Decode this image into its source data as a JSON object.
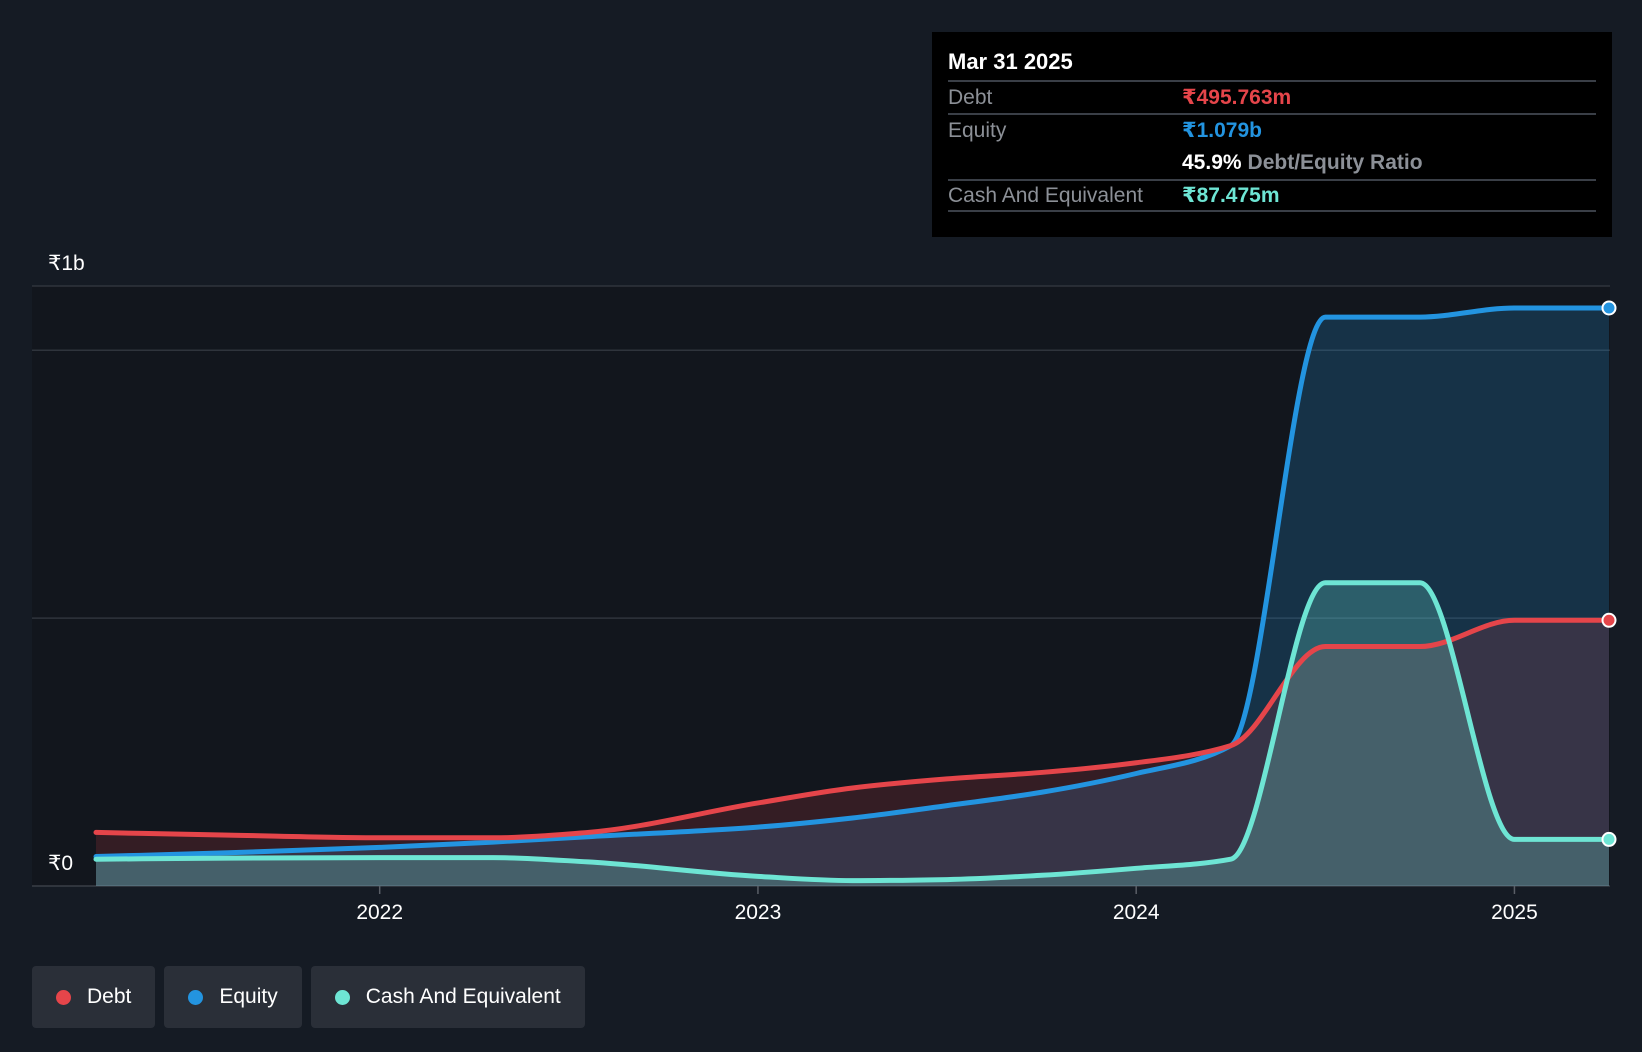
{
  "tooltip": {
    "date": "Mar 31 2025",
    "debt_label": "Debt",
    "debt_value": "₹495.763m",
    "equity_label": "Equity",
    "equity_value": "₹1.079b",
    "ratio_value": "45.9%",
    "ratio_label": "Debt/Equity Ratio",
    "cash_label": "Cash And Equivalent",
    "cash_value": "₹87.475m"
  },
  "legend": {
    "debt": "Debt",
    "equity": "Equity",
    "cash": "Cash And Equivalent"
  },
  "colors": {
    "debt": "#e5454a",
    "equity": "#2394e0",
    "cash": "#6ee5d4",
    "background": "#151b24"
  },
  "chart_data": {
    "type": "area",
    "title": "",
    "xlabel": "",
    "ylabel": "",
    "y_tick_labels": [
      "₹0",
      "₹1b"
    ],
    "x_tick_labels": [
      "2022",
      "2023",
      "2024",
      "2025"
    ],
    "x_ticks": [
      2022,
      2023,
      2024,
      2025
    ],
    "x_range": [
      2021.25,
      2025.25
    ],
    "ylim": [
      0,
      1.12
    ],
    "y_label_values": [
      0,
      1.12
    ],
    "gridlines": [
      0.5,
      1.0,
      1.12
    ],
    "series": [
      {
        "name": "Debt",
        "points": [
          [
            2021.25,
            0.1
          ],
          [
            2021.6,
            0.095
          ],
          [
            2022.0,
            0.09
          ],
          [
            2022.3,
            0.09
          ],
          [
            2022.55,
            0.1
          ],
          [
            2023.0,
            0.155
          ],
          [
            2023.25,
            0.183
          ],
          [
            2023.5,
            0.2
          ],
          [
            2023.75,
            0.212
          ],
          [
            2024.0,
            0.23
          ],
          [
            2024.25,
            0.262
          ],
          [
            2024.5,
            0.447
          ],
          [
            2024.75,
            0.447
          ],
          [
            2025.0,
            0.496
          ],
          [
            2025.25,
            0.496
          ]
        ]
      },
      {
        "name": "Equity",
        "points": [
          [
            2021.25,
            0.055
          ],
          [
            2021.6,
            0.062
          ],
          [
            2022.0,
            0.072
          ],
          [
            2022.3,
            0.082
          ],
          [
            2022.55,
            0.092
          ],
          [
            2023.0,
            0.11
          ],
          [
            2023.25,
            0.127
          ],
          [
            2023.5,
            0.15
          ],
          [
            2023.75,
            0.175
          ],
          [
            2024.0,
            0.21
          ],
          [
            2024.25,
            0.262
          ],
          [
            2024.5,
            1.062
          ],
          [
            2024.75,
            1.062
          ],
          [
            2025.0,
            1.079
          ],
          [
            2025.25,
            1.079
          ]
        ]
      },
      {
        "name": "Cash And Equivalent",
        "points": [
          [
            2021.25,
            0.05
          ],
          [
            2021.6,
            0.052
          ],
          [
            2022.0,
            0.053
          ],
          [
            2022.3,
            0.053
          ],
          [
            2022.55,
            0.045
          ],
          [
            2023.0,
            0.018
          ],
          [
            2023.25,
            0.01
          ],
          [
            2023.5,
            0.012
          ],
          [
            2023.75,
            0.02
          ],
          [
            2024.0,
            0.033
          ],
          [
            2024.25,
            0.05
          ],
          [
            2024.5,
            0.566
          ],
          [
            2024.75,
            0.566
          ],
          [
            2025.0,
            0.087
          ],
          [
            2025.25,
            0.087
          ]
        ]
      }
    ]
  }
}
